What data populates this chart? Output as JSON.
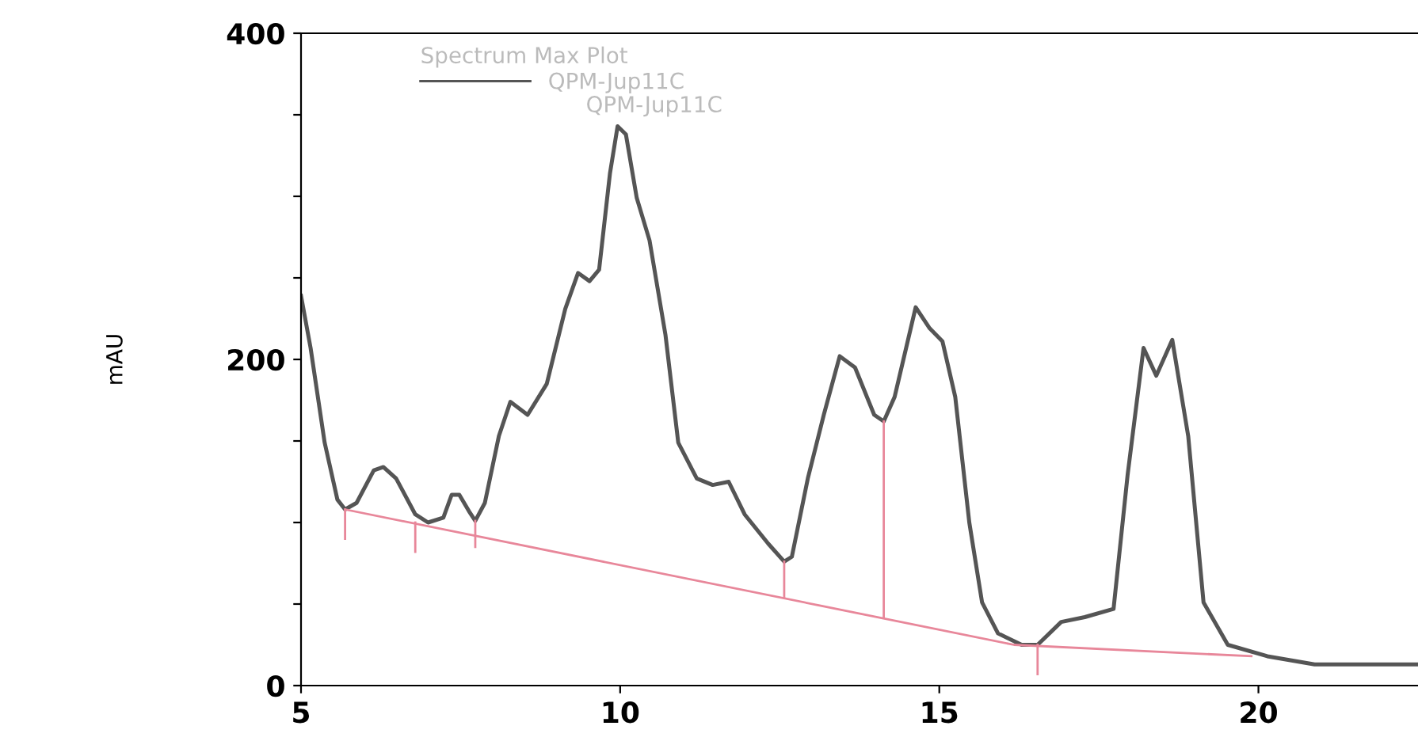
{
  "chart_data": {
    "type": "line",
    "legend_title": "Spectrum Max Plot",
    "ylabel": "mAU",
    "annotations": [
      "QPM-Jup11C"
    ],
    "xlim": [
      5,
      22.5
    ],
    "xticks": [
      5,
      10,
      15,
      20
    ],
    "ylim": [
      0,
      400
    ],
    "yticks": [
      0,
      {
        "value": 50,
        "label": null
      },
      {
        "value": 100,
        "label": null
      },
      {
        "value": 150,
        "label": null
      },
      200,
      {
        "value": 250,
        "label": null
      },
      {
        "value": 300,
        "label": null
      },
      {
        "value": 350,
        "label": null
      },
      400
    ],
    "grid": false,
    "legend": "top left",
    "line_style": "solid",
    "marker": "none",
    "series": [
      {
        "name": "QPM-Jup11C",
        "color": "#555555",
        "x": [
          5.0,
          5.15,
          5.37,
          5.57,
          5.69,
          5.87,
          6.14,
          6.29,
          6.49,
          6.79,
          6.99,
          7.23,
          7.36,
          7.48,
          7.63,
          7.73,
          7.88,
          8.1,
          8.28,
          8.55,
          8.85,
          9.14,
          9.34,
          9.52,
          9.67,
          9.84,
          9.96,
          10.09,
          10.26,
          10.46,
          10.71,
          10.91,
          11.2,
          11.45,
          11.7,
          11.95,
          12.32,
          12.57,
          12.69,
          12.94,
          13.19,
          13.44,
          13.68,
          13.98,
          14.13,
          14.3,
          14.63,
          14.85,
          15.05,
          15.25,
          15.47,
          15.67,
          15.92,
          16.29,
          16.54,
          16.91,
          17.28,
          17.73,
          17.95,
          18.2,
          18.4,
          18.65,
          18.9,
          19.14,
          19.52,
          20.14,
          20.88,
          22.5
        ],
        "values": [
          239,
          207,
          149,
          114,
          108,
          112,
          132,
          134,
          127,
          105,
          100,
          103,
          117,
          117,
          107,
          101,
          112,
          153,
          174,
          166,
          185,
          231,
          253,
          248,
          255,
          314,
          343,
          338,
          299,
          273,
          215,
          149,
          127,
          123,
          125,
          105,
          87,
          76,
          79,
          127,
          166,
          202,
          195,
          166,
          162,
          177,
          232,
          219,
          211,
          177,
          100,
          51,
          32,
          25,
          25,
          39,
          42,
          47,
          129,
          207,
          190,
          212,
          153,
          51,
          25,
          18,
          13,
          13
        ]
      },
      {
        "color": "#e8879a",
        "x": [
          5.69,
          16.17,
          19.89
        ],
        "values": [
          108,
          25,
          18
        ]
      },
      {
        "color": "#e8879a",
        "x": [
          5.69,
          5.69
        ],
        "values": [
          108,
          90
        ]
      },
      {
        "color": "#e8879a",
        "x": [
          6.79,
          6.79
        ],
        "values": [
          100,
          82
        ]
      },
      {
        "color": "#e8879a",
        "x": [
          7.73,
          7.73
        ],
        "values": [
          101,
          85
        ]
      },
      {
        "color": "#e8879a",
        "x": [
          12.57,
          12.57
        ],
        "values": [
          76,
          54
        ]
      },
      {
        "color": "#e8879a",
        "x": [
          14.13,
          14.13
        ],
        "values": [
          162,
          42
        ]
      },
      {
        "color": "#e8879a",
        "x": [
          16.54,
          16.54
        ],
        "values": [
          25,
          7
        ]
      }
    ]
  }
}
